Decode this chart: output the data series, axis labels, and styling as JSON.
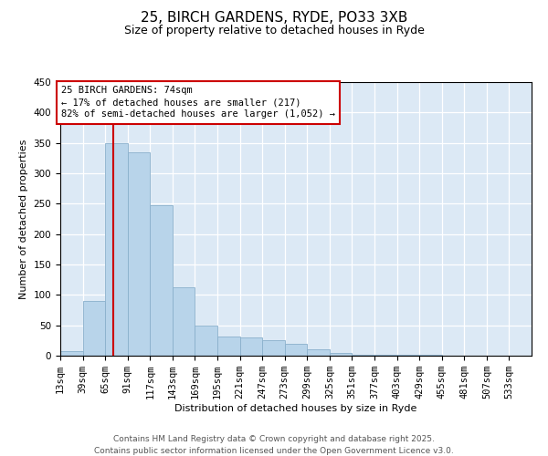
{
  "title1": "25, BIRCH GARDENS, RYDE, PO33 3XB",
  "title2": "Size of property relative to detached houses in Ryde",
  "xlabel": "Distribution of detached houses by size in Ryde",
  "ylabel": "Number of detached properties",
  "bar_color": "#b8d4ea",
  "bar_edge_color": "#8ab0cc",
  "background_color": "#dce9f5",
  "vline_x": 74,
  "vline_color": "#cc0000",
  "annotation_line1": "25 BIRCH GARDENS: 74sqm",
  "annotation_line2": "← 17% of detached houses are smaller (217)",
  "annotation_line3": "82% of semi-detached houses are larger (1,052) →",
  "annotation_box_color": "#cc0000",
  "footer1": "Contains HM Land Registry data © Crown copyright and database right 2025.",
  "footer2": "Contains public sector information licensed under the Open Government Licence v3.0.",
  "bin_edges": [
    13,
    39,
    65,
    91,
    117,
    143,
    169,
    195,
    221,
    247,
    273,
    299,
    325,
    351,
    377,
    403,
    429,
    455,
    481,
    507,
    533,
    559
  ],
  "bin_heights": [
    7,
    90,
    350,
    335,
    248,
    113,
    50,
    32,
    30,
    25,
    20,
    10,
    5,
    2,
    1,
    1,
    1,
    0,
    0,
    0,
    0
  ],
  "ylim": [
    0,
    450
  ],
  "yticks": [
    0,
    50,
    100,
    150,
    200,
    250,
    300,
    350,
    400,
    450
  ],
  "title1_fontsize": 11,
  "title2_fontsize": 9,
  "xlabel_fontsize": 8,
  "ylabel_fontsize": 8,
  "tick_fontsize": 7.5,
  "footer_fontsize": 6.5
}
